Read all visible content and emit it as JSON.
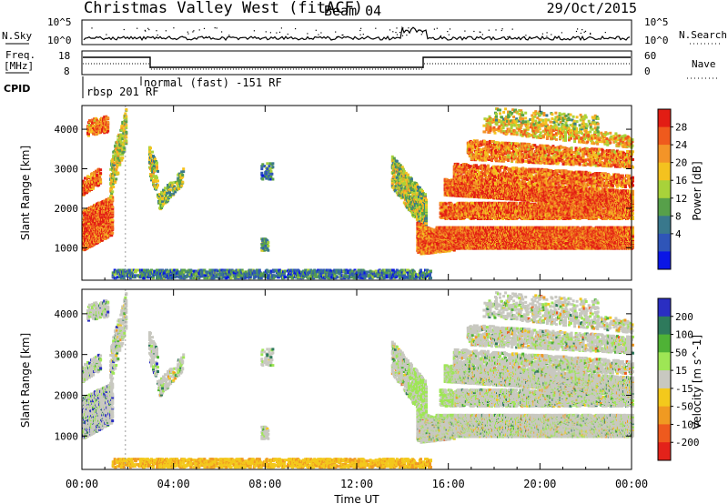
{
  "header": {
    "title": "Christmas Valley West (fitACF)",
    "beam": "Beam 04",
    "date": "29/Oct/2015"
  },
  "nsky_panel": {
    "left_label": "N.Sky",
    "right_label": "N.Search",
    "left_ticks": [
      "10^5",
      "10^0"
    ],
    "right_ticks": [
      "10^5",
      "10^0"
    ]
  },
  "freq_panel": {
    "left_label_1": "Freq.",
    "left_label_2": "[MHz]",
    "right_label": "Nave",
    "left_ticks": [
      "18",
      "8"
    ],
    "right_ticks": [
      "60",
      "0"
    ]
  },
  "cpid": {
    "label": "CPID",
    "mode_1": "rbsp 201 RF",
    "mode_2": "normal (fast) -151 RF"
  },
  "chart_data": [
    {
      "type": "heatmap",
      "quantity": "Power",
      "ylabel": "Slant Range [km]",
      "ylim": [
        180,
        4600
      ],
      "yticks": [
        "1000",
        "2000",
        "3000",
        "4000"
      ],
      "colorbar_label": "Power [dB]",
      "colorbar_ticks": [
        "4",
        "8",
        "12",
        "16",
        "20",
        "24",
        "28"
      ],
      "colorbar_colors": [
        "#0a16e6",
        "#2f55b8",
        "#39788c",
        "#57a04a",
        "#a8d23a",
        "#f4c21f",
        "#f39428",
        "#ef5a1d",
        "#e21d14"
      ]
    },
    {
      "type": "heatmap",
      "quantity": "Velocity",
      "ylabel": "Slant Range [km]",
      "ylim": [
        180,
        4600
      ],
      "yticks": [
        "1000",
        "2000",
        "3000",
        "4000"
      ],
      "colorbar_label": "Velocity [m s^-1]",
      "colorbar_ticks": [
        "200",
        "100",
        "50",
        "15",
        "-15",
        "-50",
        "-100",
        "-200"
      ],
      "colorbar_colors": [
        "#2a2ec2",
        "#2e7a5c",
        "#4fb236",
        "#9ee655",
        "#c8c8c0",
        "#f3c91c",
        "#f09a22",
        "#ee5a1e",
        "#e3221a"
      ],
      "xlabel": "Time UT",
      "xticks": [
        "00:00",
        "04:00",
        "08:00",
        "12:00",
        "16:00",
        "20:00",
        "00:00"
      ]
    }
  ]
}
